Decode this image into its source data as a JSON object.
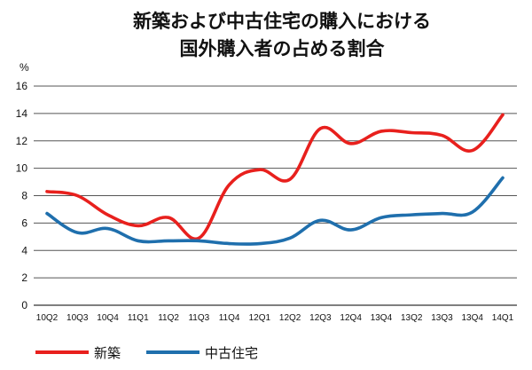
{
  "chart_data": {
    "type": "line",
    "title": [
      "新築および中古住宅の購入における",
      "国外購入者の占める割合"
    ],
    "ylabel": "%",
    "xlabel": "",
    "categories": [
      "10Q2",
      "10Q3",
      "10Q4",
      "11Q1",
      "11Q2",
      "11Q3",
      "11Q4",
      "12Q1",
      "12Q2",
      "12Q3",
      "12Q4",
      "13Q4",
      "13Q2",
      "13Q3",
      "13Q4",
      "14Q1"
    ],
    "ylim": [
      0,
      16
    ],
    "yticks": [
      0,
      2,
      4,
      6,
      8,
      10,
      12,
      14,
      16
    ],
    "grid": true,
    "legend_position": "bottom",
    "series": [
      {
        "name": "新築",
        "color": "#e8201d",
        "values": [
          8.3,
          8.0,
          6.6,
          5.8,
          6.4,
          4.9,
          8.8,
          9.9,
          9.2,
          12.9,
          11.8,
          12.7,
          12.6,
          12.4,
          11.3,
          13.9
        ]
      },
      {
        "name": "中古住宅",
        "color": "#1f6fad",
        "values": [
          6.7,
          5.3,
          5.6,
          4.7,
          4.7,
          4.7,
          4.5,
          4.5,
          4.9,
          6.2,
          5.5,
          6.4,
          6.6,
          6.7,
          6.8,
          9.3
        ]
      }
    ]
  }
}
